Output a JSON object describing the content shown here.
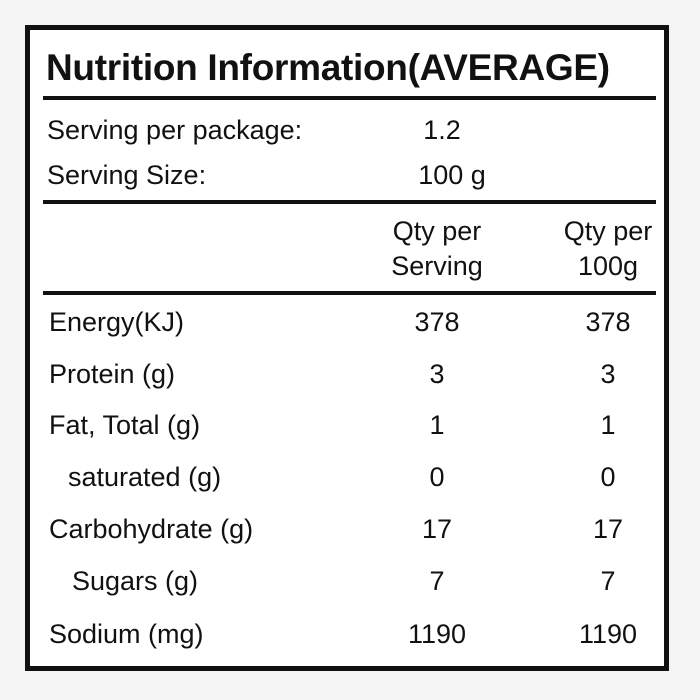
{
  "title": "Nutrition Information(AVERAGE)",
  "serving": {
    "per_package_label": "Serving per package:",
    "per_package_value": "1.2",
    "size_label": "Serving Size:",
    "size_value": "100 g"
  },
  "headers": {
    "col1_line1": "Qty per",
    "col1_line2": "Serving",
    "col2_line1": "Qty per",
    "col2_line2": "100g"
  },
  "rows": [
    {
      "label": "Energy(KJ)",
      "per_serving": "378",
      "per_100g": "378"
    },
    {
      "label": "Protein (g)",
      "per_serving": "3",
      "per_100g": "3"
    },
    {
      "label": "Fat, Total (g)",
      "per_serving": "1",
      "per_100g": "1"
    },
    {
      "label": "saturated (g)",
      "per_serving": "0",
      "per_100g": "0"
    },
    {
      "label": "Carbohydrate (g)",
      "per_serving": "17",
      "per_100g": "17"
    },
    {
      "label": "Sugars (g)",
      "per_serving": "7",
      "per_100g": "7"
    },
    {
      "label": "Sodium (mg)",
      "per_serving": "1190",
      "per_100g": "1190"
    }
  ]
}
